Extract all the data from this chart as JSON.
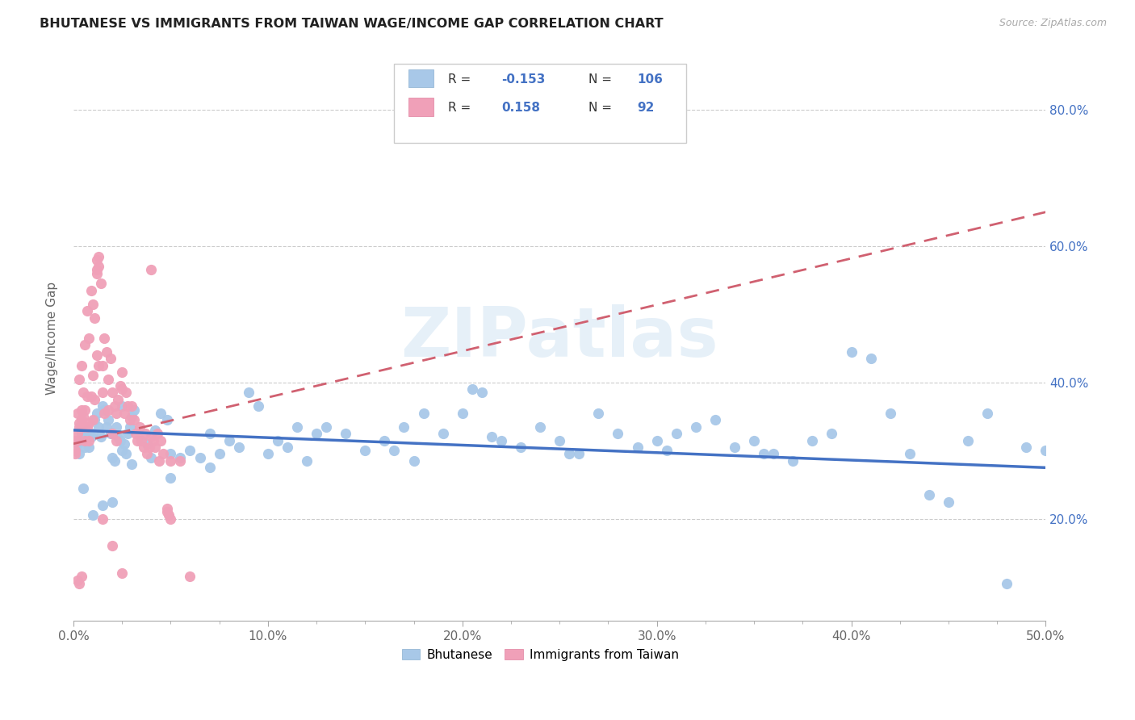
{
  "title": "BHUTANESE VS IMMIGRANTS FROM TAIWAN WAGE/INCOME GAP CORRELATION CHART",
  "source": "Source: ZipAtlas.com",
  "ylabel": "Wage/Income Gap",
  "blue_color": "#a8c8e8",
  "pink_color": "#f0a0b8",
  "blue_line_color": "#4472C4",
  "pink_line_color": "#d06070",
  "watermark": "ZIPatlas",
  "xlim": [
    0.0,
    0.5
  ],
  "ylim": [
    0.05,
    0.88
  ],
  "blue_scatter_x": [
    0.002,
    0.003,
    0.004,
    0.005,
    0.006,
    0.007,
    0.008,
    0.009,
    0.01,
    0.011,
    0.012,
    0.013,
    0.014,
    0.015,
    0.016,
    0.017,
    0.018,
    0.019,
    0.02,
    0.021,
    0.022,
    0.023,
    0.024,
    0.025,
    0.026,
    0.027,
    0.028,
    0.029,
    0.03,
    0.031,
    0.035,
    0.038,
    0.04,
    0.042,
    0.045,
    0.048,
    0.05,
    0.055,
    0.06,
    0.065,
    0.07,
    0.075,
    0.08,
    0.085,
    0.09,
    0.095,
    0.1,
    0.105,
    0.11,
    0.115,
    0.12,
    0.125,
    0.13,
    0.14,
    0.15,
    0.16,
    0.17,
    0.18,
    0.19,
    0.2,
    0.21,
    0.22,
    0.23,
    0.24,
    0.25,
    0.26,
    0.27,
    0.28,
    0.29,
    0.3,
    0.31,
    0.32,
    0.33,
    0.34,
    0.35,
    0.36,
    0.37,
    0.38,
    0.39,
    0.4,
    0.41,
    0.42,
    0.43,
    0.44,
    0.45,
    0.46,
    0.47,
    0.48,
    0.49,
    0.5,
    0.165,
    0.175,
    0.205,
    0.215,
    0.255,
    0.305,
    0.355,
    0.005,
    0.01,
    0.015,
    0.02,
    0.025,
    0.03,
    0.05,
    0.07
  ],
  "blue_scatter_y": [
    0.31,
    0.295,
    0.325,
    0.315,
    0.305,
    0.33,
    0.305,
    0.32,
    0.325,
    0.345,
    0.355,
    0.335,
    0.32,
    0.365,
    0.36,
    0.335,
    0.345,
    0.325,
    0.29,
    0.285,
    0.335,
    0.32,
    0.315,
    0.365,
    0.31,
    0.295,
    0.325,
    0.335,
    0.35,
    0.36,
    0.315,
    0.31,
    0.29,
    0.33,
    0.355,
    0.345,
    0.295,
    0.29,
    0.3,
    0.29,
    0.325,
    0.295,
    0.315,
    0.305,
    0.385,
    0.365,
    0.295,
    0.315,
    0.305,
    0.335,
    0.285,
    0.325,
    0.335,
    0.325,
    0.3,
    0.315,
    0.335,
    0.355,
    0.325,
    0.355,
    0.385,
    0.315,
    0.305,
    0.335,
    0.315,
    0.295,
    0.355,
    0.325,
    0.305,
    0.315,
    0.325,
    0.335,
    0.345,
    0.305,
    0.315,
    0.295,
    0.285,
    0.315,
    0.325,
    0.445,
    0.435,
    0.355,
    0.295,
    0.235,
    0.225,
    0.315,
    0.355,
    0.105,
    0.305,
    0.3,
    0.3,
    0.285,
    0.39,
    0.32,
    0.295,
    0.3,
    0.295,
    0.245,
    0.205,
    0.22,
    0.225,
    0.3,
    0.28,
    0.26,
    0.275
  ],
  "pink_scatter_x": [
    0.001,
    0.001,
    0.001,
    0.002,
    0.002,
    0.002,
    0.003,
    0.003,
    0.003,
    0.004,
    0.004,
    0.004,
    0.005,
    0.005,
    0.005,
    0.006,
    0.006,
    0.006,
    0.007,
    0.007,
    0.007,
    0.008,
    0.008,
    0.008,
    0.009,
    0.009,
    0.01,
    0.01,
    0.01,
    0.011,
    0.011,
    0.012,
    0.012,
    0.013,
    0.013,
    0.014,
    0.015,
    0.015,
    0.016,
    0.016,
    0.017,
    0.018,
    0.018,
    0.019,
    0.02,
    0.02,
    0.021,
    0.022,
    0.022,
    0.023,
    0.024,
    0.025,
    0.026,
    0.027,
    0.028,
    0.029,
    0.03,
    0.031,
    0.032,
    0.033,
    0.034,
    0.035,
    0.036,
    0.037,
    0.038,
    0.039,
    0.04,
    0.041,
    0.042,
    0.043,
    0.044,
    0.045,
    0.046,
    0.048,
    0.049,
    0.05,
    0.055,
    0.06,
    0.048,
    0.05,
    0.002,
    0.003,
    0.004,
    0.012,
    0.013,
    0.04,
    0.015,
    0.02,
    0.025,
    0.012,
    0.025
  ],
  "pink_scatter_y": [
    0.315,
    0.295,
    0.3,
    0.355,
    0.315,
    0.325,
    0.405,
    0.34,
    0.335,
    0.425,
    0.36,
    0.345,
    0.385,
    0.335,
    0.35,
    0.455,
    0.36,
    0.315,
    0.505,
    0.38,
    0.335,
    0.465,
    0.34,
    0.315,
    0.535,
    0.38,
    0.515,
    0.41,
    0.345,
    0.495,
    0.375,
    0.565,
    0.44,
    0.585,
    0.425,
    0.545,
    0.425,
    0.385,
    0.465,
    0.355,
    0.445,
    0.405,
    0.36,
    0.435,
    0.385,
    0.325,
    0.365,
    0.355,
    0.315,
    0.375,
    0.395,
    0.415,
    0.355,
    0.385,
    0.365,
    0.345,
    0.365,
    0.345,
    0.325,
    0.315,
    0.335,
    0.315,
    0.305,
    0.325,
    0.295,
    0.305,
    0.565,
    0.315,
    0.305,
    0.325,
    0.285,
    0.315,
    0.295,
    0.215,
    0.205,
    0.285,
    0.285,
    0.115,
    0.21,
    0.2,
    0.11,
    0.105,
    0.115,
    0.58,
    0.57,
    0.32,
    0.2,
    0.16,
    0.12,
    0.56,
    0.39
  ],
  "blue_trend_x": [
    0.0,
    0.5
  ],
  "blue_trend_y": [
    0.33,
    0.275
  ],
  "pink_trend_x": [
    0.0,
    0.5
  ],
  "pink_trend_y": [
    0.31,
    0.65
  ]
}
